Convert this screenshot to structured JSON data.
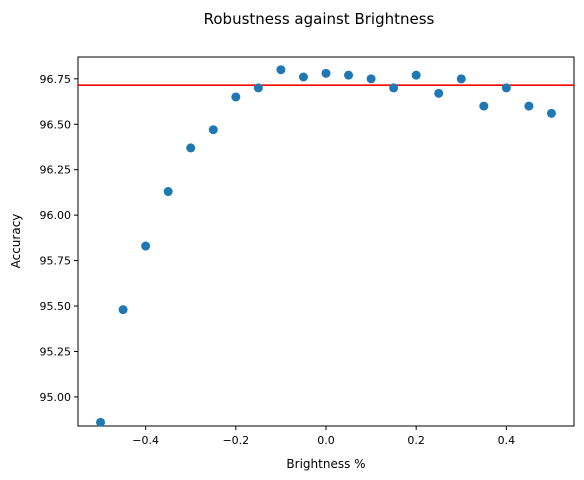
{
  "chart_data": {
    "type": "scatter",
    "title": "Robustness against Brightness",
    "xlabel": "Brightness %",
    "ylabel": "Accuracy",
    "xlim": [
      -0.55,
      0.55
    ],
    "ylim": [
      94.84,
      96.87
    ],
    "xticks": [
      -0.4,
      -0.2,
      0.0,
      0.2,
      0.4
    ],
    "xtick_labels": [
      "−0.4",
      "−0.2",
      "0.0",
      "0.2",
      "0.4"
    ],
    "yticks": [
      95.0,
      95.25,
      95.5,
      95.75,
      96.0,
      96.25,
      96.5,
      96.75
    ],
    "ytick_labels": [
      "95.00",
      "95.25",
      "95.50",
      "95.75",
      "96.00",
      "96.25",
      "96.50",
      "96.75"
    ],
    "grid": false,
    "series": [
      {
        "color": "#1f77b4",
        "points": [
          {
            "x": -0.5,
            "y": 94.86
          },
          {
            "x": -0.45,
            "y": 95.48
          },
          {
            "x": -0.4,
            "y": 95.83
          },
          {
            "x": -0.35,
            "y": 96.13
          },
          {
            "x": -0.3,
            "y": 96.37
          },
          {
            "x": -0.25,
            "y": 96.47
          },
          {
            "x": -0.2,
            "y": 96.65
          },
          {
            "x": -0.15,
            "y": 96.7
          },
          {
            "x": -0.1,
            "y": 96.8
          },
          {
            "x": -0.05,
            "y": 96.76
          },
          {
            "x": 0.0,
            "y": 96.78
          },
          {
            "x": 0.05,
            "y": 96.77
          },
          {
            "x": 0.1,
            "y": 96.75
          },
          {
            "x": 0.15,
            "y": 96.7
          },
          {
            "x": 0.2,
            "y": 96.77
          },
          {
            "x": 0.25,
            "y": 96.67
          },
          {
            "x": 0.3,
            "y": 96.75
          },
          {
            "x": 0.35,
            "y": 96.6
          },
          {
            "x": 0.4,
            "y": 96.7
          },
          {
            "x": 0.45,
            "y": 96.6
          },
          {
            "x": 0.5,
            "y": 96.56
          }
        ]
      }
    ],
    "reference_line": {
      "y": 96.715,
      "color": "#ff0000"
    }
  }
}
